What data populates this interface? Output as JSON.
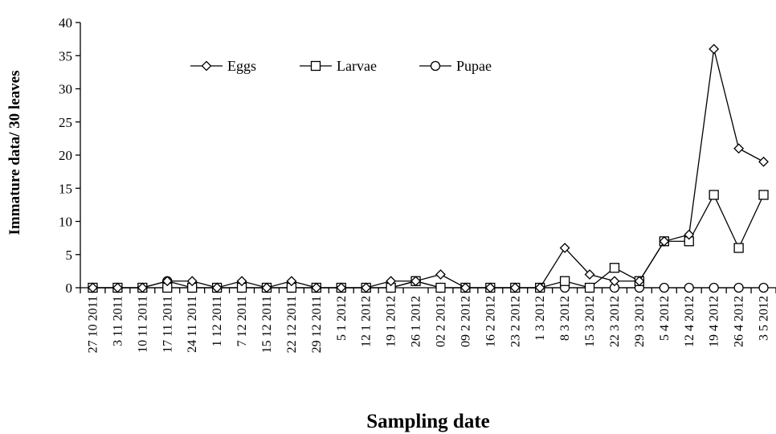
{
  "chart_data": {
    "type": "line",
    "xlabel": "Sampling date",
    "ylabel": "Immature data/ 30 leaves",
    "ylim": [
      0,
      40
    ],
    "yticks": [
      0,
      5,
      10,
      15,
      20,
      25,
      30,
      35,
      40
    ],
    "grid": false,
    "legend_position": "top-left",
    "categories": [
      "27 10 2011",
      "3 11 2011",
      "10 11 2011",
      "17 11 2011",
      "24 11 2011",
      "1 12 2011",
      "7 12 2011",
      "15 12 2011",
      "22 12 2011",
      "29 12 2011",
      "5 1 2012",
      "12 1 2012",
      "19 1 2012",
      "26 1 2012",
      "02 2 2012",
      "09 2 2012",
      "16 2 2012",
      "23 2 2012",
      "1 3 2012",
      "8 3 2012",
      "15 3 2012",
      "22 3 2012",
      "29 3 2012",
      "5 4 2012",
      "12 4 2012",
      "19 4 2012",
      "26 4 2012",
      "3 5 2012"
    ],
    "series": [
      {
        "name": "Eggs",
        "marker": "diamond",
        "values": [
          0,
          0,
          0,
          1,
          1,
          0,
          1,
          0,
          1,
          0,
          0,
          0,
          1,
          1,
          2,
          0,
          0,
          0,
          0,
          6,
          2,
          1,
          1,
          7,
          8,
          36,
          21,
          19
        ]
      },
      {
        "name": "Larvae",
        "marker": "square",
        "values": [
          0,
          0,
          0,
          0,
          0,
          0,
          0,
          0,
          0,
          0,
          0,
          0,
          0,
          1,
          0,
          0,
          0,
          0,
          0,
          1,
          0,
          3,
          1,
          7,
          7,
          14,
          6,
          14
        ]
      },
      {
        "name": "Pupae",
        "marker": "circle",
        "values": [
          0,
          0,
          0,
          1,
          0,
          0,
          0,
          0,
          0,
          0,
          0,
          0,
          0,
          1,
          0,
          0,
          0,
          0,
          0,
          0,
          0,
          0,
          0,
          0,
          0,
          0,
          0,
          0
        ]
      }
    ]
  }
}
